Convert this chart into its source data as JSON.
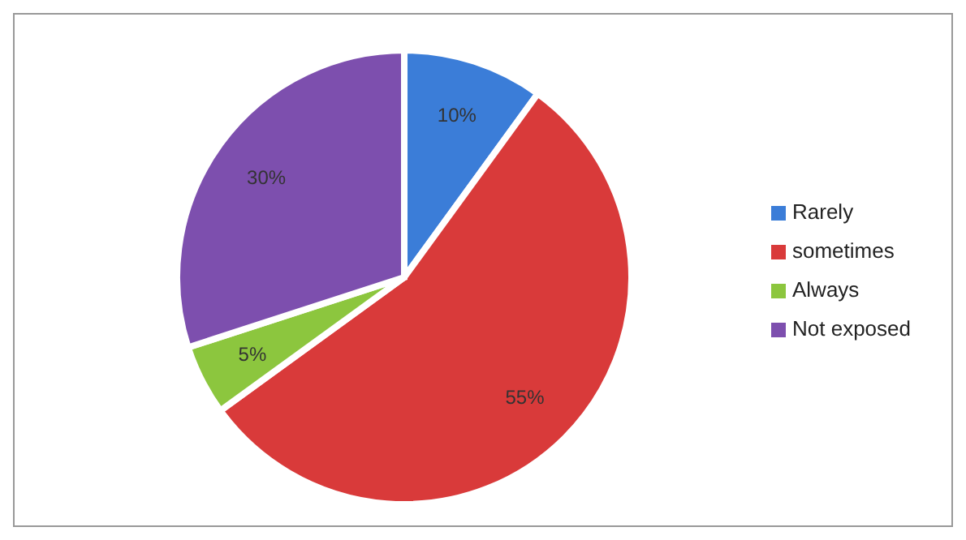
{
  "chart_data": {
    "type": "pie",
    "categories": [
      "Rarely",
      "sometimes",
      "Always",
      "Not exposed"
    ],
    "values": [
      10,
      55,
      5,
      30
    ],
    "colors": [
      "#3b7dd8",
      "#d93a3a",
      "#8cc63e",
      "#7d4fae"
    ],
    "value_labels": [
      "10%",
      "55%",
      "5%",
      "30%"
    ],
    "legend": "right"
  }
}
